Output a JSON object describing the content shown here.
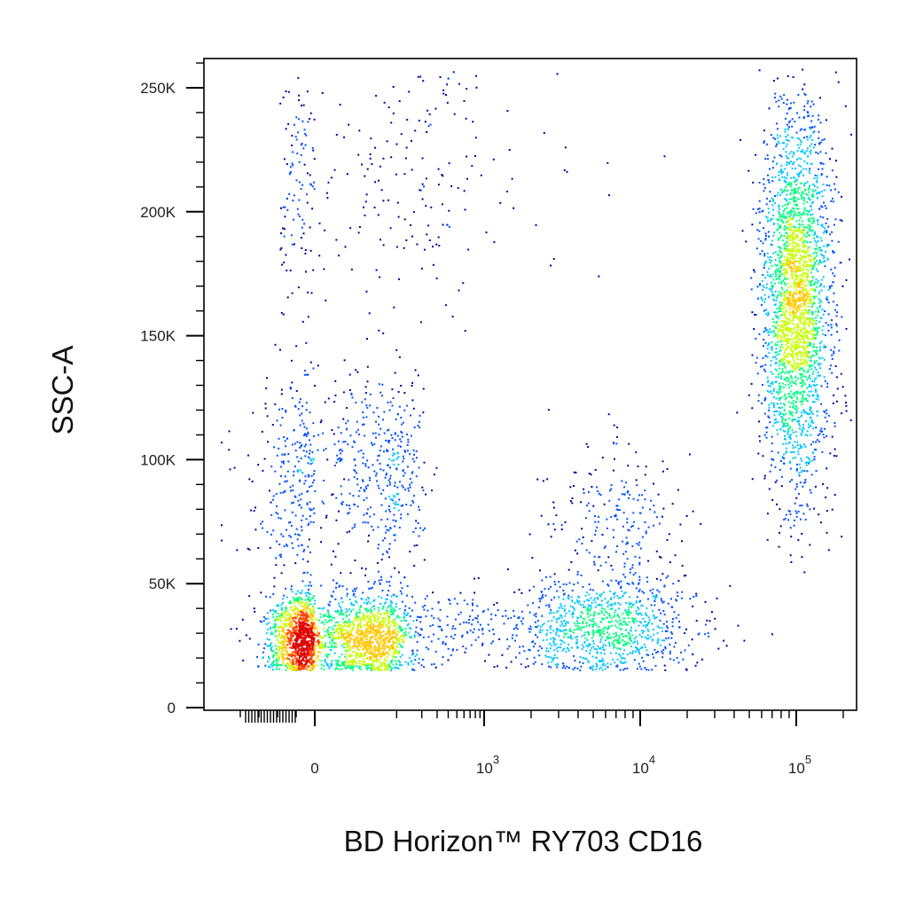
{
  "chart_data": {
    "type": "scatter",
    "subtype": "flow-cytometry-density-dot-plot",
    "xlabel": "BD Horizon™ RY703 CD16",
    "ylabel": "SSC-A",
    "x_scale": "biexponential",
    "y_scale": "linear",
    "xlim": [
      -200,
      200000
    ],
    "ylim": [
      0,
      262144
    ],
    "x_ticks": [
      {
        "value": 0,
        "base": "0",
        "exp": ""
      },
      {
        "value": 1000,
        "base": "10",
        "exp": "3"
      },
      {
        "value": 10000,
        "base": "10",
        "exp": "4"
      },
      {
        "value": 100000,
        "base": "10",
        "exp": "5"
      }
    ],
    "y_ticks": [
      {
        "value": 0,
        "label": "0"
      },
      {
        "value": 50000,
        "label": "50K"
      },
      {
        "value": 100000,
        "label": "100K"
      },
      {
        "value": 150000,
        "label": "150K"
      },
      {
        "value": 200000,
        "label": "200K"
      },
      {
        "value": 250000,
        "label": "250K"
      }
    ],
    "color_scale": [
      "#0000a0",
      "#0050ff",
      "#00c8ff",
      "#00ff80",
      "#c8ff00",
      "#ffc800",
      "#ff4000",
      "#e00000"
    ],
    "populations": [
      {
        "name": "",
        "x_center": 0,
        "x_spread": 1.0,
        "y_center": 28000,
        "y_spread": 9000,
        "points": 2200
      },
      {
        "name": "",
        "x_center": 20,
        "x_spread": 1.5,
        "y_center": 95000,
        "y_spread": 22000,
        "points": 700
      },
      {
        "name": "",
        "x_center": 150,
        "x_spread": 1.6,
        "y_center": 215000,
        "y_spread": 30000,
        "points": 320
      },
      {
        "name": "",
        "x_center": 400,
        "x_spread": 1.8,
        "y_center": 32000,
        "y_spread": 8000,
        "points": 330
      },
      {
        "name": "",
        "x_center": 6000,
        "x_spread": 0.55,
        "y_center": 32000,
        "y_spread": 10000,
        "points": 900
      },
      {
        "name": "",
        "x_center": 7000,
        "x_spread": 0.5,
        "y_center": 75000,
        "y_spread": 18000,
        "points": 230
      },
      {
        "name": "",
        "x_center": 100000,
        "x_spread": 0.22,
        "y_center": 165000,
        "y_spread": 38000,
        "points": 2600
      }
    ]
  }
}
